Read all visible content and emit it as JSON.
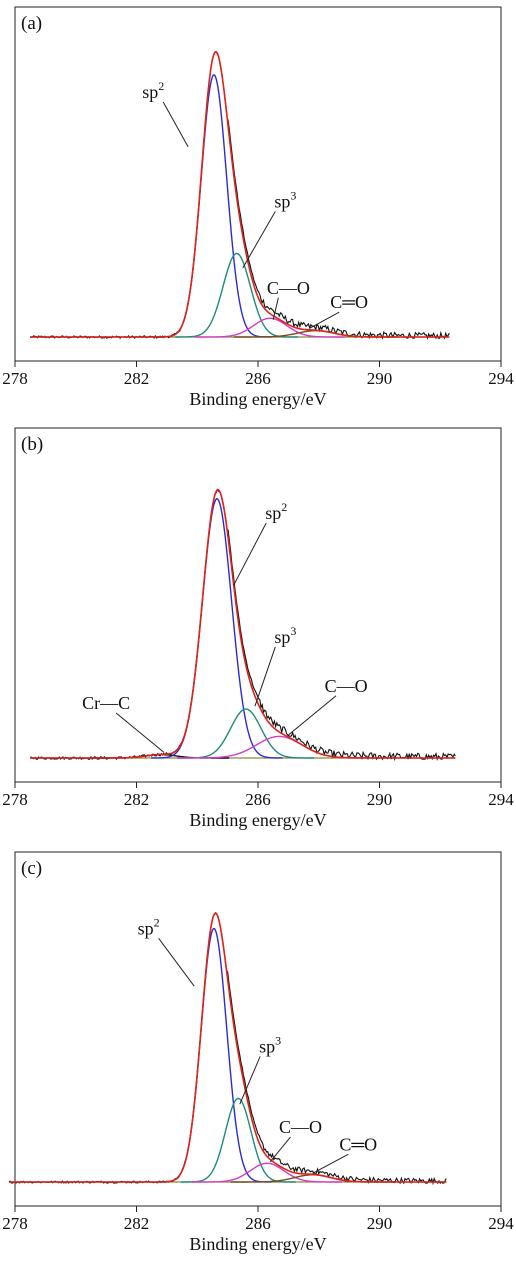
{
  "chart_data": [
    {
      "type": "line",
      "panel_label": "(a)",
      "xlabel": "Binding energy/eV",
      "ylabel": "",
      "xlim": [
        278,
        294
      ],
      "xticks": [
        278,
        282,
        286,
        290,
        294
      ],
      "grid": false,
      "x_start": 278.5,
      "x_end": 292.3,
      "noise": 0.007,
      "peaks": [
        {
          "name": "sp2",
          "center": 284.55,
          "height": 0.91,
          "sigma": 0.42,
          "color": "#2b2bd6"
        },
        {
          "name": "sp3",
          "center": 285.3,
          "height": 0.29,
          "sigma": 0.45,
          "color": "#1f8a7a"
        },
        {
          "name": "C—O",
          "center": 286.4,
          "height": 0.065,
          "sigma": 0.55,
          "color": "#d23cc8"
        },
        {
          "name": "C═O",
          "center": 287.9,
          "height": 0.022,
          "sigma": 0.6,
          "color": "#7a4a1e"
        }
      ],
      "annotations": [
        {
          "text": "sp",
          "sup": "2",
          "peak": "sp2",
          "tx": 282.55,
          "ty": 0.83,
          "ax": 283.7,
          "ay": 0.66
        },
        {
          "text": "sp",
          "sup": "3",
          "peak": "sp3",
          "tx": 286.9,
          "ty": 0.45,
          "ax": 285.5,
          "ay": 0.24
        },
        {
          "text": "C—O",
          "sup": "",
          "peak": "C—O",
          "tx": 287.0,
          "ty": 0.15,
          "ax": 286.5,
          "ay": 0.06
        },
        {
          "text": "C═O",
          "sup": "",
          "peak": "C═O",
          "tx": 289.0,
          "ty": 0.1,
          "ax": 287.7,
          "ay": 0.03
        }
      ]
    },
    {
      "type": "line",
      "panel_label": "(b)",
      "xlabel": "Binding energy/eV",
      "ylabel": "",
      "xlim": [
        278,
        294
      ],
      "xticks": [
        278,
        282,
        286,
        290,
        294
      ],
      "grid": false,
      "x_start": 278.5,
      "x_end": 292.5,
      "noise": 0.008,
      "peaks": [
        {
          "name": "Cr—C",
          "center": 282.8,
          "height": 0.012,
          "sigma": 0.5,
          "color": "#111111"
        },
        {
          "name": "sp2",
          "center": 284.65,
          "height": 0.9,
          "sigma": 0.48,
          "color": "#2b2bd6"
        },
        {
          "name": "sp3",
          "center": 285.6,
          "height": 0.17,
          "sigma": 0.5,
          "color": "#1f8a7a"
        },
        {
          "name": "C—O",
          "center": 286.7,
          "height": 0.075,
          "sigma": 0.75,
          "color": "#d23cc8"
        }
      ],
      "annotations": [
        {
          "text": "Cr—C",
          "sup": "",
          "peak": "Cr—C",
          "tx": 281.0,
          "ty": 0.17,
          "ax": 282.9,
          "ay": 0.02
        },
        {
          "text": "sp",
          "sup": "2",
          "peak": "sp2",
          "tx": 286.6,
          "ty": 0.83,
          "ax": 285.2,
          "ay": 0.6
        },
        {
          "text": "sp",
          "sup": "3",
          "peak": "sp3",
          "tx": 286.9,
          "ty": 0.4,
          "ax": 285.9,
          "ay": 0.18
        },
        {
          "text": "C—O",
          "sup": "",
          "peak": "C—O",
          "tx": 288.9,
          "ty": 0.23,
          "ax": 287.0,
          "ay": 0.08
        }
      ]
    },
    {
      "type": "line",
      "panel_label": "(c)",
      "xlabel": "Binding energy/eV",
      "ylabel": "",
      "xlim": [
        278,
        294
      ],
      "xticks": [
        278,
        282,
        286,
        290,
        294
      ],
      "grid": false,
      "x_start": 277.8,
      "x_end": 292.2,
      "noise": 0.006,
      "peaks": [
        {
          "name": "sp2",
          "center": 284.55,
          "height": 0.88,
          "sigma": 0.42,
          "color": "#2b2bd6"
        },
        {
          "name": "sp3",
          "center": 285.35,
          "height": 0.29,
          "sigma": 0.42,
          "color": "#1f8a7a"
        },
        {
          "name": "C—O",
          "center": 286.3,
          "height": 0.065,
          "sigma": 0.55,
          "color": "#d23cc8"
        },
        {
          "name": "C═O",
          "center": 287.8,
          "height": 0.025,
          "sigma": 0.6,
          "color": "#7a4a1e"
        }
      ],
      "annotations": [
        {
          "text": "sp",
          "sup": "2",
          "peak": "sp2",
          "tx": 282.4,
          "ty": 0.86,
          "ax": 283.9,
          "ay": 0.68
        },
        {
          "text": "sp",
          "sup": "3",
          "peak": "sp3",
          "tx": 286.4,
          "ty": 0.45,
          "ax": 285.4,
          "ay": 0.27
        },
        {
          "text": "C—O",
          "sup": "",
          "peak": "C—O",
          "tx": 287.4,
          "ty": 0.17,
          "ax": 286.4,
          "ay": 0.07
        },
        {
          "text": "C═O",
          "sup": "",
          "peak": "C═O",
          "tx": 289.3,
          "ty": 0.11,
          "ax": 287.8,
          "ay": 0.03
        }
      ]
    }
  ],
  "colors": {
    "envelope": "#e0231a",
    "raw": "#111111",
    "baseline": "#8a8a3a",
    "axis": "#222222"
  }
}
